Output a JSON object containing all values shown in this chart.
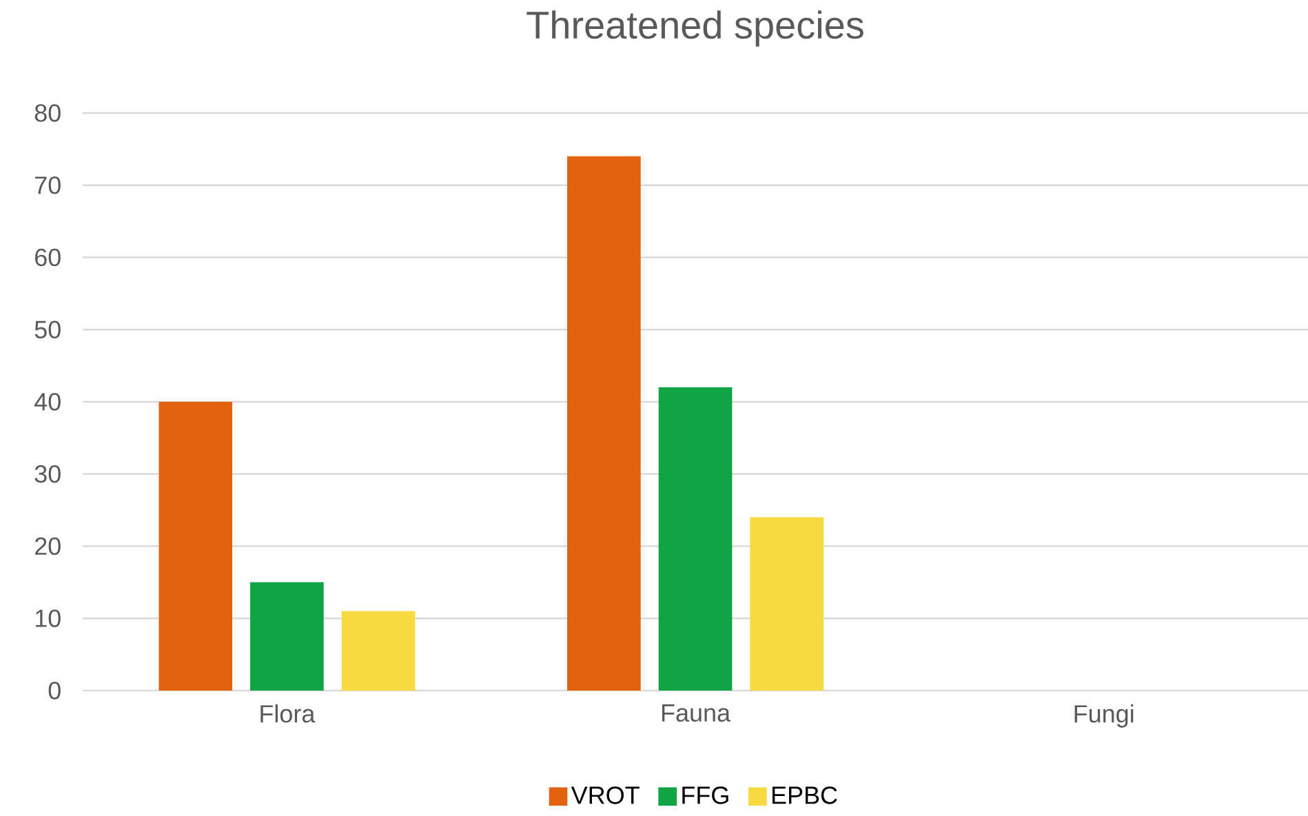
{
  "chart_data": {
    "type": "bar",
    "title": "Threatened species",
    "categories": [
      "Flora",
      "Fauna",
      "Fungi"
    ],
    "series": [
      {
        "name": "VROT",
        "color": "#e36210",
        "values": [
          40,
          74,
          0
        ]
      },
      {
        "name": "FFG",
        "color": "#11a444",
        "values": [
          15,
          42,
          0
        ]
      },
      {
        "name": "EPBC",
        "color": "#f7d940",
        "values": [
          11,
          24,
          0
        ]
      }
    ],
    "ylim": [
      0,
      80
    ],
    "yticks": [
      0,
      10,
      20,
      30,
      40,
      50,
      60,
      70,
      80
    ],
    "grid": "y",
    "legend": "bottom"
  }
}
